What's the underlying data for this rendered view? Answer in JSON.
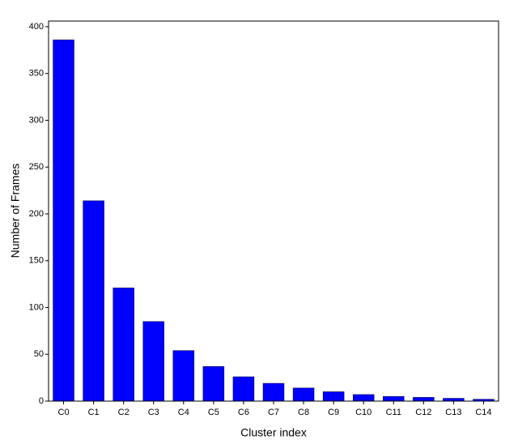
{
  "chart_data": {
    "type": "bar",
    "xlabel": "Cluster index",
    "ylabel": "Number of Frames",
    "categories": [
      "C0",
      "C1",
      "C2",
      "C3",
      "C4",
      "C5",
      "C6",
      "C7",
      "C8",
      "C9",
      "C10",
      "C11",
      "C12",
      "C13",
      "C14"
    ],
    "values": [
      386,
      214,
      121,
      85,
      54,
      37,
      26,
      19,
      14,
      10,
      7,
      5,
      4,
      3,
      2
    ],
    "color": "#0000ff",
    "ylim": [
      0,
      406
    ],
    "yticks": [
      0,
      50,
      100,
      150,
      200,
      250,
      300,
      350,
      400
    ],
    "grid": false
  }
}
